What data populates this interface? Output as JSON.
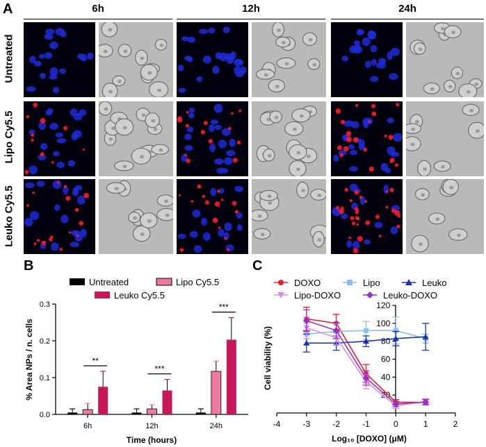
{
  "panel_a": {
    "letter": "A",
    "columns": [
      "6h",
      "12h",
      "24h"
    ],
    "rows": [
      "Untreated",
      "Lipo Cy5.5",
      "Leuko Cy5.5"
    ]
  },
  "panel_b": {
    "letter": "B",
    "legend": [
      "Untreated",
      "Lipo Cy5.5",
      "Leuko Cy5.5"
    ],
    "colors": {
      "untreated": "#000000",
      "lipo": "#ee7aa0",
      "leuko": "#c8185a"
    }
  },
  "panel_c": {
    "letter": "C",
    "legend": [
      "DOXO",
      "Lipo",
      "Leuko",
      "Lipo-DOXO",
      "Leuko-DOXO"
    ],
    "colors": {
      "DOXO": "#ee1c24",
      "Lipo": "#88c0f0",
      "Leuko": "#1a2fbf",
      "Lipo-DOXO": "#d98be8",
      "Leuko-DOXO": "#9b2fc2"
    }
  },
  "chart_data": [
    {
      "type": "bar",
      "categories": [
        "6h",
        "12h",
        "24h"
      ],
      "series": [
        {
          "name": "Untreated",
          "values": [
            0.005,
            0.005,
            0.005
          ],
          "errors": [
            0.01,
            0.01,
            0.01
          ]
        },
        {
          "name": "Lipo Cy5.5",
          "values": [
            0.013,
            0.015,
            0.117
          ],
          "errors": [
            0.017,
            0.011,
            0.028
          ]
        },
        {
          "name": "Leuko Cy5.5",
          "values": [
            0.075,
            0.065,
            0.203
          ],
          "errors": [
            0.042,
            0.03,
            0.06
          ]
        }
      ],
      "significance": [
        "**",
        "***",
        "***"
      ],
      "xlabel": "Time (hours)",
      "ylabel": "% Area NPs / n. cells",
      "ylim": [
        0,
        0.3
      ],
      "yticks": [
        "0.0",
        "0.1",
        "0.2",
        "0.3"
      ]
    },
    {
      "type": "line",
      "xlabel": "Log₁₀ [DOXO] (μM)",
      "ylabel": "Cell viability (%)",
      "xlim": [
        -4,
        2
      ],
      "ylim": [
        0,
        120
      ],
      "xticks": [
        "-4",
        "-3",
        "-2",
        "-1",
        "0",
        "1",
        "2"
      ],
      "yticks": [
        "20",
        "40",
        "60",
        "80",
        "100",
        "120"
      ],
      "series": [
        {
          "name": "DOXO",
          "x": [
            -3,
            -2,
            -1,
            0,
            1
          ],
          "y": [
            105,
            100,
            44,
            12,
            12
          ],
          "err": [
            13,
            10,
            10,
            3,
            3
          ]
        },
        {
          "name": "Lipo",
          "x": [
            -3,
            -2,
            -1,
            0,
            1
          ],
          "y": [
            88,
            91,
            92,
            92,
            83
          ],
          "err": [
            12,
            8,
            10,
            15,
            5
          ]
        },
        {
          "name": "Leuko",
          "x": [
            -3,
            -2,
            -1,
            0,
            1
          ],
          "y": [
            78,
            78,
            80,
            83,
            85
          ],
          "err": [
            10,
            8,
            6,
            8,
            15
          ]
        },
        {
          "name": "Lipo-DOXO",
          "x": [
            -3,
            -2,
            -1,
            0,
            1
          ],
          "y": [
            95,
            84,
            35,
            8,
            13
          ],
          "err": [
            12,
            8,
            8,
            3,
            3
          ]
        },
        {
          "name": "Leuko-DOXO",
          "x": [
            -3,
            -2,
            -1,
            0,
            1
          ],
          "y": [
            103,
            92,
            39,
            10,
            12
          ],
          "err": [
            12,
            9,
            8,
            3,
            3
          ]
        }
      ]
    }
  ]
}
